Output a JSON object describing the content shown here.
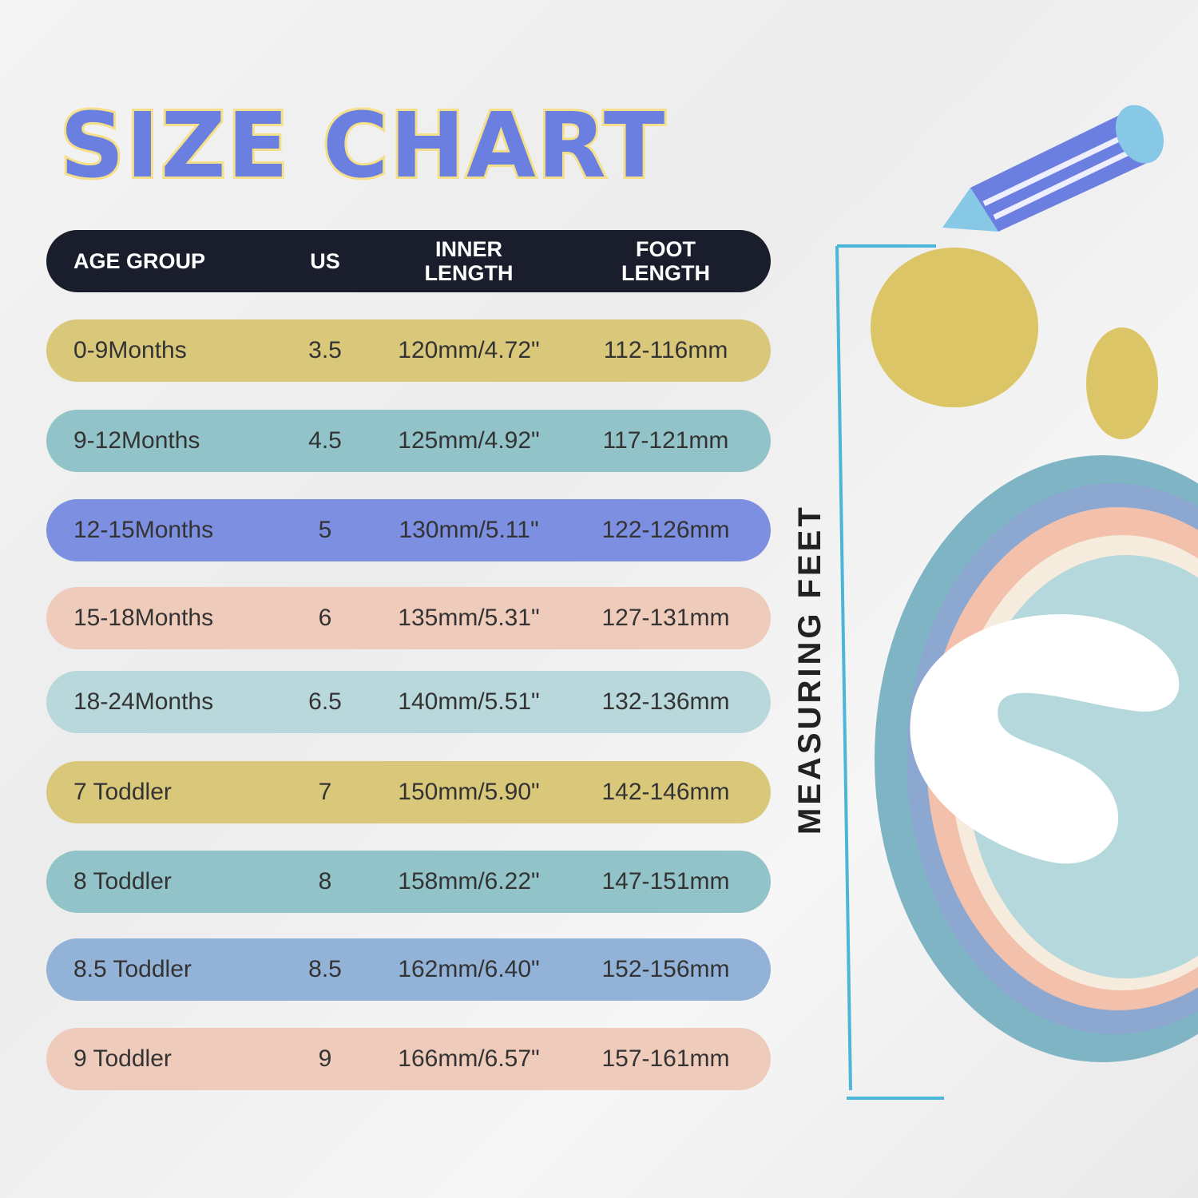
{
  "title": "SIZE CHART",
  "table": {
    "headers": [
      "AGE GROUP",
      "US",
      "INNER LENGTH",
      "FOOT LENGTH"
    ],
    "rows": [
      {
        "age": "0-9Months",
        "us": "3.5",
        "inner": "120mm/4.72\"",
        "foot": "112-116mm",
        "color": "#d9c77a"
      },
      {
        "age": "9-12Months",
        "us": "4.5",
        "inner": "125mm/4.92\"",
        "foot": "117-121mm",
        "color": "#92c3c9"
      },
      {
        "age": "12-15Months",
        "us": "5",
        "inner": "130mm/5.11\"",
        "foot": "122-126mm",
        "color": "#7d8fe0"
      },
      {
        "age": "15-18Months",
        "us": "6",
        "inner": "135mm/5.31\"",
        "foot": "127-131mm",
        "color": "#efcbbb"
      },
      {
        "age": "18-24Months",
        "us": "6.5",
        "inner": "140mm/5.51\"",
        "foot": "132-136mm",
        "color": "#b9d8dc"
      },
      {
        "age": "7 Toddler",
        "us": "7",
        "inner": "150mm/5.90\"",
        "foot": "142-146mm",
        "color": "#d9c77a"
      },
      {
        "age": "8 Toddler",
        "us": "8",
        "inner": "158mm/6.22\"",
        "foot": "147-151mm",
        "color": "#92c3c9"
      },
      {
        "age": "8.5 Toddler",
        "us": "8.5",
        "inner": "162mm/6.40\"",
        "foot": "152-156mm",
        "color": "#93b2d8"
      },
      {
        "age": "9 Toddler",
        "us": "9",
        "inner": "166mm/6.57\"",
        "foot": "157-161mm",
        "color": "#efcbbb"
      }
    ]
  },
  "side_label": "MEASURING FEET",
  "colors": {
    "header_bg": "#1a1d2c",
    "title_fill": "#6b7fe0",
    "title_outline": "#f4e08a",
    "ruler": "#4cb6d8"
  }
}
